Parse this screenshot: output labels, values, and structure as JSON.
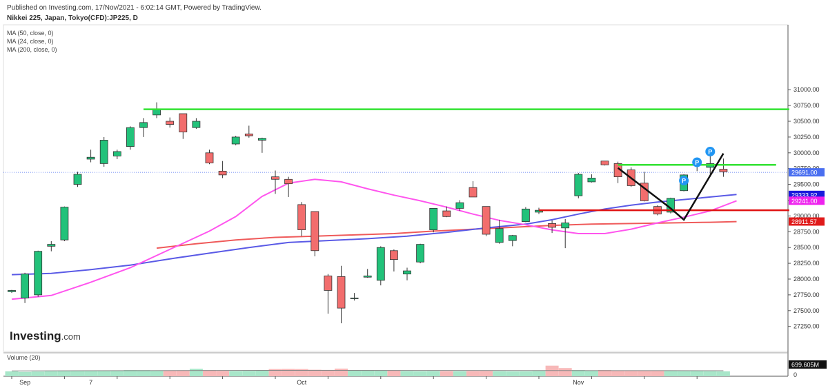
{
  "header": {
    "published": "Published on Investing.com, 17/Nov/2021 - 6:02:14 GMT, Powered by TradingView.",
    "instrument": "Nikkei 225, Japan, Tokyo(CFD):JP225, D"
  },
  "indicators": [
    "MA (50, close, 0)",
    "MA (24, close, 0)",
    "MA (200, close, 0)"
  ],
  "logo": {
    "main": "Investing",
    "suffix": ".com"
  },
  "volume_label": "Volume (20)",
  "colors": {
    "up": "#22c27a",
    "down": "#f26d6d",
    "ma50": "#ff55ee",
    "ma24": "#5a5ae6",
    "ma200": "#ef5a5a",
    "green_line": "#33e233",
    "red_line": "#e01010"
  },
  "chart_data": {
    "type": "candlestick",
    "y_ticks": [
      "31000.00",
      "30750.00",
      "30500.00",
      "30250.00",
      "30000.00",
      "29750.00",
      "29500.00",
      "29250.00",
      "29000.00",
      "28750.00",
      "28500.00",
      "28250.00",
      "28000.00",
      "27750.00",
      "27500.00",
      "27250.00"
    ],
    "ylim": [
      27050,
      31150
    ],
    "x_labels": [
      {
        "label": "Sep",
        "index": 1
      },
      {
        "label": "7",
        "index": 6
      },
      {
        "label": "Oct",
        "index": 22
      },
      {
        "label": "Nov",
        "index": 43
      }
    ],
    "price_labels": [
      {
        "text": "29691.00",
        "value": 29691,
        "color": "#4a6ff0"
      },
      {
        "text": "29333.92",
        "value": 29333.92,
        "color": "#1a1adc"
      },
      {
        "text": "29241.00",
        "value": 29241,
        "color": "#ee22ee"
      },
      {
        "text": "28911.57",
        "value": 28911.57,
        "color": "#e01a1a"
      }
    ],
    "volume_label_value": "699.605M",
    "volume_ticks": [
      "0"
    ],
    "candles": [
      [
        27800,
        27830,
        27780,
        27820
      ],
      [
        27700,
        28100,
        27620,
        28080
      ],
      [
        27750,
        28450,
        27720,
        28440
      ],
      [
        28520,
        28600,
        28440,
        28550
      ],
      [
        28620,
        29150,
        28600,
        29140
      ],
      [
        29500,
        29700,
        29460,
        29660
      ],
      [
        29900,
        30050,
        29850,
        29930
      ],
      [
        29830,
        30250,
        29780,
        30200
      ],
      [
        29950,
        30050,
        29900,
        30020
      ],
      [
        30100,
        30420,
        30050,
        30400
      ],
      [
        30400,
        30550,
        30250,
        30480
      ],
      [
        30600,
        30800,
        30550,
        30690
      ],
      [
        30500,
        30560,
        30400,
        30450
      ],
      [
        30620,
        30620,
        30220,
        30330
      ],
      [
        30400,
        30550,
        30380,
        30500
      ],
      [
        30000,
        30050,
        29820,
        29840
      ],
      [
        29710,
        29870,
        29600,
        29650
      ],
      [
        30140,
        30270,
        30120,
        30250
      ],
      [
        30300,
        30430,
        30240,
        30270
      ],
      [
        30200,
        30240,
        30000,
        30230
      ],
      [
        29620,
        29720,
        29350,
        29580
      ],
      [
        29580,
        29620,
        29300,
        29510
      ],
      [
        29180,
        29220,
        28680,
        28780
      ],
      [
        29070,
        29070,
        28360,
        28450
      ],
      [
        28050,
        28080,
        27450,
        27820
      ],
      [
        28040,
        28210,
        27300,
        27540
      ],
      [
        27690,
        27780,
        27660,
        27700
      ],
      [
        28030,
        28160,
        28020,
        28050
      ],
      [
        27980,
        28520,
        27900,
        28500
      ],
      [
        28450,
        28470,
        28120,
        28310
      ],
      [
        28080,
        28180,
        27980,
        28130
      ],
      [
        28270,
        28560,
        28250,
        28550
      ],
      [
        28780,
        29120,
        28740,
        29120
      ],
      [
        29080,
        29150,
        28980,
        28990
      ],
      [
        29120,
        29250,
        29080,
        29210
      ],
      [
        29450,
        29550,
        29320,
        29300
      ],
      [
        29150,
        29150,
        28680,
        28710
      ],
      [
        28580,
        28940,
        28560,
        28800
      ],
      [
        28610,
        28700,
        28520,
        28690
      ],
      [
        28910,
        29140,
        28900,
        29110
      ],
      [
        29060,
        29130,
        29030,
        29090
      ],
      [
        28880,
        28930,
        28730,
        28820
      ],
      [
        28810,
        28950,
        28490,
        28890
      ],
      [
        29320,
        29680,
        29280,
        29660
      ],
      [
        29540,
        29660,
        29530,
        29600
      ],
      [
        29870,
        29870,
        29800,
        29810
      ],
      [
        29830,
        29860,
        29520,
        29620
      ],
      [
        29730,
        29770,
        29460,
        29480
      ],
      [
        29520,
        29700,
        29230,
        29240
      ],
      [
        29150,
        29170,
        29010,
        29030
      ],
      [
        29060,
        29290,
        29040,
        29280
      ],
      [
        29400,
        29660,
        29390,
        29650
      ],
      [
        29820,
        29880,
        29710,
        29800
      ],
      [
        29770,
        29950,
        29660,
        29830
      ],
      [
        29740,
        29910,
        29620,
        29700
      ]
    ],
    "moving_averages": {
      "ma50_magenta": [
        [
          0,
          27680
        ],
        [
          3,
          27740
        ],
        [
          6,
          27950
        ],
        [
          9,
          28180
        ],
        [
          12,
          28470
        ],
        [
          15,
          28760
        ],
        [
          17,
          28990
        ],
        [
          19,
          29310
        ],
        [
          21,
          29520
        ],
        [
          23,
          29580
        ],
        [
          25,
          29540
        ],
        [
          27,
          29430
        ],
        [
          29,
          29330
        ],
        [
          31,
          29240
        ],
        [
          33,
          29140
        ],
        [
          35,
          29030
        ],
        [
          37,
          28930
        ],
        [
          39,
          28860
        ],
        [
          41,
          28780
        ],
        [
          43,
          28720
        ],
        [
          45,
          28720
        ],
        [
          47,
          28790
        ],
        [
          49,
          28890
        ],
        [
          51,
          28980
        ],
        [
          53,
          29080
        ],
        [
          55,
          29240
        ]
      ],
      "ma24_blue": [
        [
          0,
          28070
        ],
        [
          3,
          28090
        ],
        [
          6,
          28150
        ],
        [
          9,
          28220
        ],
        [
          12,
          28320
        ],
        [
          15,
          28410
        ],
        [
          18,
          28500
        ],
        [
          21,
          28580
        ],
        [
          24,
          28610
        ],
        [
          27,
          28640
        ],
        [
          30,
          28680
        ],
        [
          33,
          28740
        ],
        [
          36,
          28810
        ],
        [
          39,
          28870
        ],
        [
          41,
          28940
        ],
        [
          43,
          29030
        ],
        [
          45,
          29110
        ],
        [
          47,
          29170
        ],
        [
          49,
          29220
        ],
        [
          51,
          29260
        ],
        [
          53,
          29300
        ],
        [
          55,
          29340
        ]
      ],
      "ma200_red": [
        [
          11,
          28490
        ],
        [
          14,
          28560
        ],
        [
          17,
          28620
        ],
        [
          20,
          28660
        ],
        [
          23,
          28680
        ],
        [
          26,
          28700
        ],
        [
          29,
          28720
        ],
        [
          32,
          28760
        ],
        [
          35,
          28790
        ],
        [
          38,
          28820
        ],
        [
          41,
          28850
        ],
        [
          44,
          28870
        ],
        [
          47,
          28880
        ],
        [
          50,
          28890
        ],
        [
          53,
          28900
        ],
        [
          55,
          28910
        ]
      ]
    },
    "annotations": {
      "green_top_line": {
        "from_index": 10,
        "to_index": 59,
        "value": 30690
      },
      "green_mid_line": {
        "from_index": 46,
        "to_index": 58,
        "value": 29810
      },
      "red_line": {
        "from_index": 40,
        "to_index": 59,
        "value": 29090
      },
      "black_pattern": [
        [
          46,
          29760
        ],
        [
          50,
          29120
        ],
        [
          51,
          28940
        ],
        [
          54,
          29990
        ]
      ],
      "p_markers": [
        {
          "index": 51,
          "value": 29560
        },
        {
          "index": 52,
          "value": 29850
        },
        {
          "index": 53,
          "value": 30020
        }
      ]
    },
    "volume": [
      [
        300,
        1
      ],
      [
        270,
        1
      ],
      [
        290,
        1
      ],
      [
        310,
        1
      ],
      [
        330,
        1
      ],
      [
        345,
        1
      ],
      [
        360,
        1
      ],
      [
        355,
        1
      ],
      [
        360,
        1
      ],
      [
        380,
        1
      ],
      [
        375,
        1
      ],
      [
        360,
        1
      ],
      [
        350,
        0
      ],
      [
        350,
        0
      ],
      [
        460,
        1
      ],
      [
        370,
        0
      ],
      [
        330,
        0
      ],
      [
        320,
        1
      ],
      [
        330,
        1
      ],
      [
        350,
        1
      ],
      [
        440,
        0
      ],
      [
        450,
        0
      ],
      [
        440,
        0
      ],
      [
        400,
        0
      ],
      [
        390,
        0
      ],
      [
        470,
        0
      ],
      [
        340,
        1
      ],
      [
        380,
        1
      ],
      [
        360,
        1
      ],
      [
        340,
        0
      ],
      [
        320,
        1
      ],
      [
        310,
        1
      ],
      [
        320,
        1
      ],
      [
        315,
        0
      ],
      [
        310,
        1
      ],
      [
        320,
        0
      ],
      [
        330,
        0
      ],
      [
        310,
        1
      ],
      [
        300,
        1
      ],
      [
        305,
        1
      ],
      [
        330,
        1
      ],
      [
        650,
        0
      ],
      [
        500,
        0
      ],
      [
        380,
        1
      ],
      [
        360,
        1
      ],
      [
        380,
        0
      ],
      [
        340,
        0
      ],
      [
        330,
        0
      ],
      [
        340,
        0
      ],
      [
        350,
        0
      ],
      [
        340,
        1
      ],
      [
        320,
        1
      ],
      [
        330,
        1
      ],
      [
        310,
        1
      ],
      [
        300,
        1
      ]
    ],
    "volume_ma": [
      [
        0,
        330
      ],
      [
        10,
        345
      ],
      [
        20,
        360
      ],
      [
        30,
        355
      ],
      [
        40,
        350
      ],
      [
        50,
        345
      ],
      [
        54,
        340
      ]
    ]
  }
}
